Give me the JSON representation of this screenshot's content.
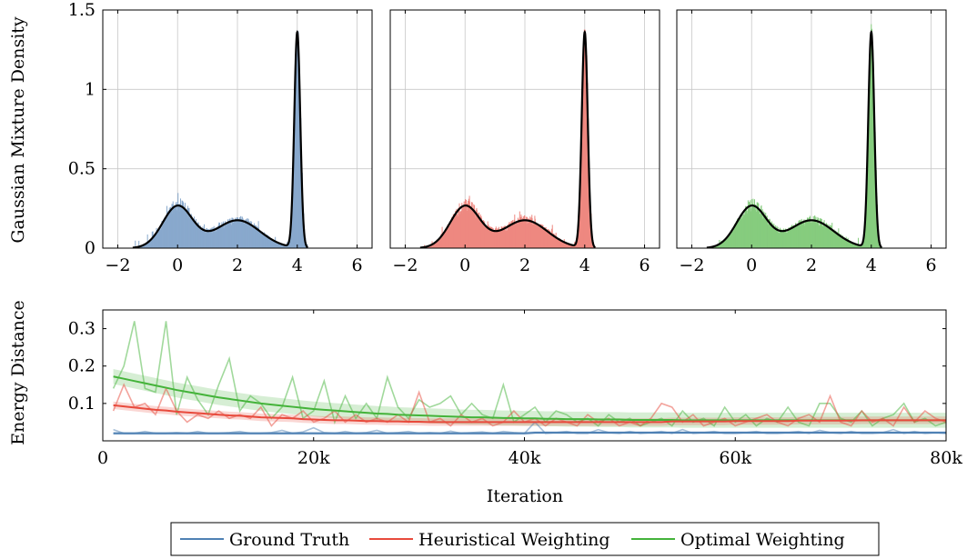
{
  "colors": {
    "ground_truth": "#4f81b4",
    "heuristic": "#e84a3c",
    "optimal": "#44b33a",
    "hist_blue": "#89a9cd",
    "hist_red": "#ee8880",
    "hist_green": "#86cc7e",
    "density_line": "#000000",
    "grid": "#c8c8c8"
  },
  "chart_data": [
    {
      "type": "area",
      "panel": "density-ground-truth",
      "ylabel": "Gaussian Mixture Density",
      "xlim": [
        -2.5,
        6.5
      ],
      "ylim": [
        0,
        1.5
      ],
      "xticks": [
        -2,
        0,
        2,
        4,
        6
      ],
      "xtick_labels": [
        "−2",
        "0",
        "2",
        "4",
        "6"
      ],
      "yticks": [
        0,
        0.5,
        1,
        1.5
      ],
      "ytick_labels": [
        "0",
        "0.5",
        "1",
        "1.5"
      ],
      "grid": true,
      "histogram_color": "hist_blue",
      "mixture": [
        {
          "mean": 0,
          "sd": 0.5,
          "weight": 0.33
        },
        {
          "mean": 2,
          "sd": 0.75,
          "weight": 0.33
        },
        {
          "mean": 4,
          "sd": 0.1,
          "weight": 0.34
        }
      ],
      "peaks": [
        {
          "x": 0,
          "y": 0.26
        },
        {
          "x": 2,
          "y": 0.17
        },
        {
          "x": 4,
          "y": 1.4
        }
      ]
    },
    {
      "type": "area",
      "panel": "density-heuristical-weighting",
      "xlim": [
        -2.5,
        6.5
      ],
      "ylim": [
        0,
        1.5
      ],
      "xticks": [
        -2,
        0,
        2,
        4,
        6
      ],
      "xtick_labels": [
        "−2",
        "0",
        "2",
        "4",
        "6"
      ],
      "grid": true,
      "histogram_color": "hist_red",
      "mixture": [
        {
          "mean": 0,
          "sd": 0.5,
          "weight": 0.33
        },
        {
          "mean": 2,
          "sd": 0.75,
          "weight": 0.33
        },
        {
          "mean": 4,
          "sd": 0.1,
          "weight": 0.34
        }
      ],
      "peaks": [
        {
          "x": 0,
          "y": 0.26
        },
        {
          "x": 2,
          "y": 0.17
        },
        {
          "x": 4,
          "y": 1.4
        }
      ]
    },
    {
      "type": "area",
      "panel": "density-optimal-weighting",
      "xlim": [
        -2.5,
        6.5
      ],
      "ylim": [
        0,
        1.5
      ],
      "xticks": [
        -2,
        0,
        2,
        4,
        6
      ],
      "xtick_labels": [
        "−2",
        "0",
        "2",
        "4",
        "6"
      ],
      "grid": true,
      "histogram_color": "hist_green",
      "mixture": [
        {
          "mean": 0,
          "sd": 0.5,
          "weight": 0.33
        },
        {
          "mean": 2,
          "sd": 0.75,
          "weight": 0.33
        },
        {
          "mean": 4,
          "sd": 0.1,
          "weight": 0.34
        }
      ],
      "peaks": [
        {
          "x": 0,
          "y": 0.26
        },
        {
          "x": 2,
          "y": 0.17
        },
        {
          "x": 4,
          "y": 1.4
        }
      ]
    },
    {
      "type": "line",
      "panel": "energy-distance",
      "xlabel": "Iteration",
      "ylabel": "Energy Distance",
      "xlim": [
        0,
        80000
      ],
      "ylim": [
        0,
        0.35
      ],
      "xticks": [
        0,
        20000,
        40000,
        60000,
        80000
      ],
      "xtick_labels": [
        "0",
        "20k",
        "40k",
        "60k",
        "80k"
      ],
      "yticks": [
        0.1,
        0.2,
        0.3
      ],
      "ytick_labels": [
        "0.1",
        "0.2",
        "0.3"
      ],
      "grid": false,
      "legend": "bottom-center",
      "x": [
        1000,
        2000,
        3000,
        4000,
        5000,
        6000,
        7000,
        8000,
        9000,
        10000,
        11000,
        12000,
        13000,
        14000,
        15000,
        16000,
        17000,
        18000,
        19000,
        20000,
        21000,
        22000,
        23000,
        24000,
        25000,
        26000,
        27000,
        28000,
        29000,
        30000,
        31000,
        32000,
        33000,
        34000,
        35000,
        36000,
        37000,
        38000,
        39000,
        40000,
        41000,
        42000,
        43000,
        44000,
        45000,
        46000,
        47000,
        48000,
        49000,
        50000,
        51000,
        52000,
        53000,
        54000,
        55000,
        56000,
        57000,
        58000,
        59000,
        60000,
        61000,
        62000,
        63000,
        64000,
        65000,
        66000,
        67000,
        68000,
        69000,
        70000,
        71000,
        72000,
        73000,
        74000,
        75000,
        76000,
        77000,
        78000,
        79000,
        80000
      ],
      "series": [
        {
          "name": "Ground Truth",
          "color": "ground_truth",
          "values": [
            0.03,
            0.02,
            0.02,
            0.025,
            0.02,
            0.02,
            0.022,
            0.02,
            0.025,
            0.02,
            0.02,
            0.022,
            0.025,
            0.02,
            0.02,
            0.022,
            0.028,
            0.02,
            0.024,
            0.035,
            0.022,
            0.02,
            0.025,
            0.02,
            0.022,
            0.028,
            0.02,
            0.022,
            0.025,
            0.02,
            0.022,
            0.02,
            0.026,
            0.02,
            0.022,
            0.024,
            0.02,
            0.025,
            0.022,
            0.02,
            0.05,
            0.02,
            0.022,
            0.025,
            0.02,
            0.02,
            0.03,
            0.022,
            0.02,
            0.025,
            0.02,
            0.022,
            0.025,
            0.02,
            0.03,
            0.02,
            0.022,
            0.025,
            0.02,
            0.02,
            0.022,
            0.025,
            0.02,
            0.02,
            0.022,
            0.025,
            0.02,
            0.028,
            0.022,
            0.02,
            0.025,
            0.02,
            0.02,
            0.022,
            0.03,
            0.02,
            0.025,
            0.02,
            0.022,
            0.02
          ],
          "trend": [
            0.02,
            0.02,
            0.02,
            0.02,
            0.02,
            0.02,
            0.02,
            0.02,
            0.02,
            0.02,
            0.02,
            0.02,
            0.02,
            0.02,
            0.02,
            0.02,
            0.02,
            0.02,
            0.02,
            0.02,
            0.02,
            0.02,
            0.02,
            0.02,
            0.02,
            0.02,
            0.02,
            0.02,
            0.02,
            0.02,
            0.02,
            0.02,
            0.02,
            0.02,
            0.02,
            0.02,
            0.02,
            0.02,
            0.02,
            0.02,
            0.022,
            0.022,
            0.022,
            0.022,
            0.022,
            0.022,
            0.022,
            0.022,
            0.022,
            0.022,
            0.022,
            0.022,
            0.022,
            0.022,
            0.022,
            0.022,
            0.022,
            0.022,
            0.022,
            0.022,
            0.022,
            0.022,
            0.022,
            0.022,
            0.022,
            0.022,
            0.022,
            0.022,
            0.022,
            0.022,
            0.022,
            0.022,
            0.022,
            0.022,
            0.022,
            0.022,
            0.022,
            0.022,
            0.022,
            0.022
          ],
          "band": 0.004
        },
        {
          "name": "Heuristical Weighting",
          "color": "heuristic",
          "values": [
            0.08,
            0.15,
            0.09,
            0.1,
            0.07,
            0.14,
            0.08,
            0.05,
            0.07,
            0.06,
            0.08,
            0.06,
            0.07,
            0.06,
            0.09,
            0.04,
            0.07,
            0.06,
            0.08,
            0.05,
            0.06,
            0.08,
            0.05,
            0.07,
            0.05,
            0.06,
            0.05,
            0.07,
            0.05,
            0.13,
            0.05,
            0.06,
            0.04,
            0.07,
            0.05,
            0.06,
            0.04,
            0.05,
            0.08,
            0.05,
            0.06,
            0.04,
            0.06,
            0.05,
            0.04,
            0.07,
            0.05,
            0.06,
            0.04,
            0.05,
            0.04,
            0.06,
            0.1,
            0.09,
            0.05,
            0.07,
            0.04,
            0.05,
            0.06,
            0.04,
            0.05,
            0.06,
            0.07,
            0.05,
            0.04,
            0.06,
            0.07,
            0.05,
            0.12,
            0.05,
            0.04,
            0.08,
            0.05,
            0.06,
            0.04,
            0.09,
            0.05,
            0.08,
            0.06,
            0.05
          ],
          "trend": [
            0.095,
            0.092,
            0.089,
            0.086,
            0.083,
            0.081,
            0.078,
            0.076,
            0.074,
            0.072,
            0.07,
            0.068,
            0.067,
            0.065,
            0.063,
            0.062,
            0.061,
            0.06,
            0.058,
            0.057,
            0.056,
            0.055,
            0.055,
            0.054,
            0.053,
            0.053,
            0.052,
            0.052,
            0.051,
            0.051,
            0.05,
            0.05,
            0.05,
            0.05,
            0.05,
            0.05,
            0.05,
            0.05,
            0.05,
            0.05,
            0.05,
            0.05,
            0.05,
            0.05,
            0.05,
            0.05,
            0.05,
            0.05,
            0.05,
            0.05,
            0.05,
            0.05,
            0.05,
            0.052,
            0.052,
            0.052,
            0.052,
            0.052,
            0.052,
            0.053,
            0.053,
            0.053,
            0.053,
            0.053,
            0.053,
            0.054,
            0.054,
            0.054,
            0.054,
            0.054,
            0.054,
            0.055,
            0.055,
            0.055,
            0.055,
            0.055,
            0.055,
            0.055,
            0.055,
            0.055
          ],
          "band": 0.01
        },
        {
          "name": "Optimal Weighting",
          "color": "optimal",
          "values": [
            0.14,
            0.2,
            0.32,
            0.14,
            0.13,
            0.32,
            0.07,
            0.17,
            0.11,
            0.07,
            0.15,
            0.22,
            0.08,
            0.12,
            0.1,
            0.06,
            0.09,
            0.17,
            0.06,
            0.08,
            0.16,
            0.05,
            0.12,
            0.06,
            0.1,
            0.06,
            0.17,
            0.09,
            0.06,
            0.11,
            0.09,
            0.1,
            0.12,
            0.07,
            0.1,
            0.07,
            0.06,
            0.15,
            0.05,
            0.07,
            0.09,
            0.05,
            0.08,
            0.07,
            0.05,
            0.06,
            0.04,
            0.07,
            0.05,
            0.06,
            0.04,
            0.05,
            0.06,
            0.04,
            0.08,
            0.05,
            0.06,
            0.04,
            0.09,
            0.05,
            0.07,
            0.04,
            0.06,
            0.05,
            0.09,
            0.05,
            0.04,
            0.1,
            0.1,
            0.06,
            0.05,
            0.08,
            0.04,
            0.06,
            0.07,
            0.1,
            0.05,
            0.06,
            0.04,
            0.05
          ],
          "trend": [
            0.172,
            0.166,
            0.16,
            0.154,
            0.148,
            0.142,
            0.136,
            0.131,
            0.126,
            0.121,
            0.116,
            0.112,
            0.108,
            0.104,
            0.1,
            0.097,
            0.094,
            0.091,
            0.088,
            0.085,
            0.083,
            0.081,
            0.079,
            0.077,
            0.075,
            0.073,
            0.072,
            0.07,
            0.069,
            0.068,
            0.067,
            0.066,
            0.065,
            0.064,
            0.063,
            0.063,
            0.062,
            0.061,
            0.061,
            0.06,
            0.06,
            0.059,
            0.059,
            0.058,
            0.058,
            0.058,
            0.057,
            0.057,
            0.057,
            0.056,
            0.056,
            0.056,
            0.056,
            0.056,
            0.055,
            0.055,
            0.055,
            0.055,
            0.055,
            0.055,
            0.055,
            0.055,
            0.055,
            0.055,
            0.055,
            0.055,
            0.055,
            0.055,
            0.055,
            0.055,
            0.055,
            0.055,
            0.055,
            0.055,
            0.055,
            0.055,
            0.055,
            0.055,
            0.055,
            0.055
          ],
          "band": 0.02
        }
      ]
    }
  ]
}
